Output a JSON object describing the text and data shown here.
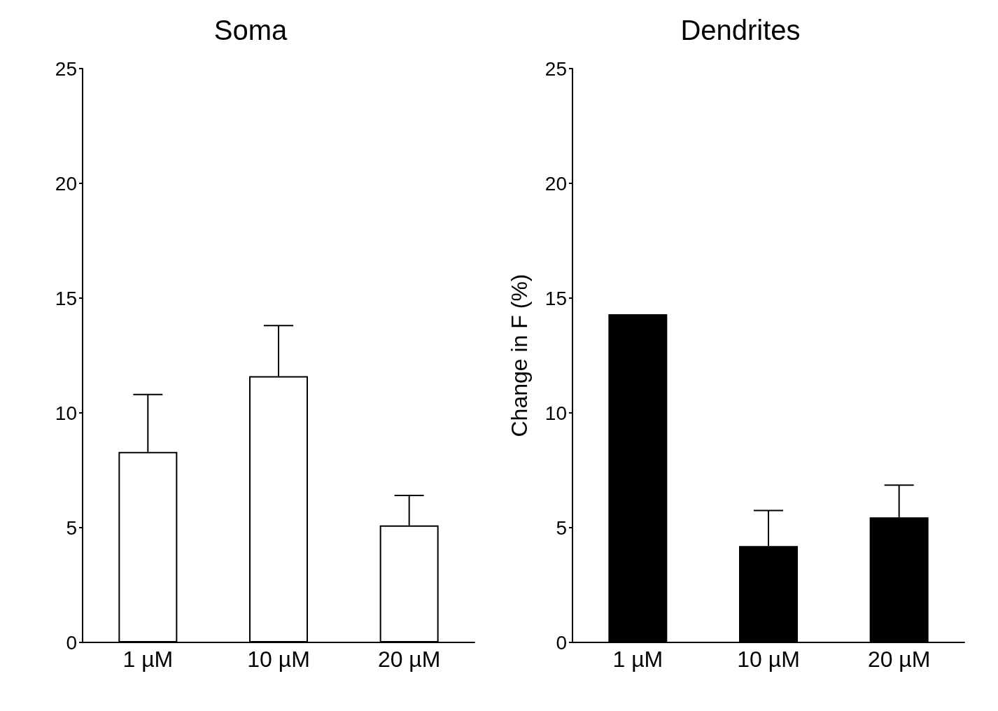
{
  "chart_data": [
    {
      "type": "bar",
      "title": "Soma",
      "categories": [
        "1 µM",
        "10 µM",
        "20 µM"
      ],
      "color": "#ffffff",
      "values": [
        8.3,
        11.6,
        5.1
      ],
      "errors": [
        2.5,
        2.2,
        1.3
      ],
      "ylim": [
        0,
        25
      ],
      "yticks": [
        0,
        5,
        10,
        15,
        20,
        25
      ],
      "grid": false
    },
    {
      "type": "bar",
      "title": "Dendrites",
      "ylabel": "Change in F (%)",
      "categories": [
        "1 µM",
        "10 µM",
        "20 µM"
      ],
      "color": "#000000",
      "values": [
        14.3,
        4.2,
        5.45
      ],
      "errors": [
        null,
        1.55,
        1.4
      ],
      "ylim": [
        0,
        25
      ],
      "yticks": [
        0,
        5,
        10,
        15,
        20,
        25
      ],
      "grid": false
    }
  ]
}
